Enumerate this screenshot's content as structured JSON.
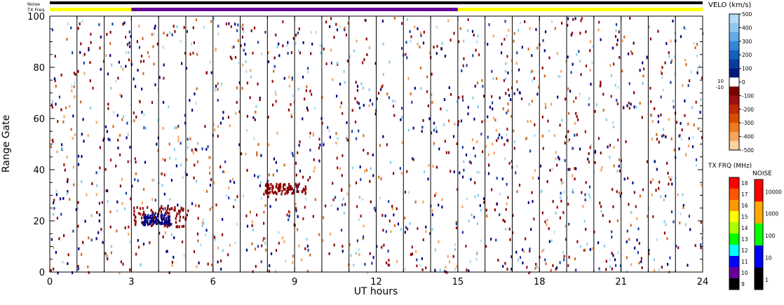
{
  "header": {
    "noise_label": "Noise",
    "txfreq_label": "TX Freq"
  },
  "chart_data": {
    "type": "scatter",
    "xlabel": "UT hours",
    "ylabel": "Range Gate",
    "xlim": [
      0,
      24
    ],
    "ylim": [
      0,
      100
    ],
    "x_ticks": [
      "0",
      "3",
      "6",
      "9",
      "12",
      "15",
      "18",
      "21",
      "24"
    ],
    "y_ticks": [
      "0",
      "20",
      "40",
      "60",
      "80",
      "100"
    ],
    "scan_boundaries_ut": [
      1,
      2,
      3,
      4,
      5,
      6,
      7,
      8,
      9,
      10,
      11,
      12,
      13,
      14,
      15,
      16,
      17,
      18,
      19,
      20,
      21,
      22,
      23
    ],
    "noise_bar": {
      "segments": [
        {
          "from": 0,
          "to": 24,
          "color": "#000000"
        }
      ]
    },
    "txfreq_bar": {
      "segments": [
        {
          "from": 0,
          "to": 3,
          "color": "#ffff00"
        },
        {
          "from": 3,
          "to": 15,
          "color": "#660099"
        },
        {
          "from": 15,
          "to": 24,
          "color": "#ffff00"
        }
      ]
    },
    "echo_clusters": [
      {
        "ut_start": 3.05,
        "ut_end": 5.1,
        "gate_start": 18,
        "gate_end": 26,
        "color": "#8b0000"
      },
      {
        "ut_start": 3.4,
        "ut_end": 4.4,
        "gate_start": 19,
        "gate_end": 23,
        "color": "#000080"
      },
      {
        "ut_start": 7.9,
        "ut_end": 9.4,
        "gate_start": 31,
        "gate_end": 35,
        "color": "#8b0000"
      }
    ],
    "velocity_colorbar": {
      "title": "VELO (km/s)",
      "tick_labels": [
        "500",
        "400",
        "300",
        "200",
        "100",
        "0",
        "-100",
        "-200",
        "-300",
        "-400",
        "-500"
      ],
      "inner_labels": [
        "10",
        "-10"
      ],
      "colors": [
        "#b4dcf5",
        "#8fc6ee",
        "#63a9e3",
        "#3587d6",
        "#1660bd",
        "#0b3c9f",
        "#001a7a",
        "#ffffff",
        "#7a0000",
        "#9e1010",
        "#c02a00",
        "#d94f00",
        "#ef7b1c",
        "#f7a55c",
        "#fcd0a0"
      ]
    },
    "txfreq_colorbar": {
      "title": "TX FRQ (MHz)",
      "tick_labels": [
        "18",
        "17",
        "16",
        "15",
        "14",
        "13",
        "12",
        "11",
        "10",
        "9"
      ],
      "colors": [
        "#ff0000",
        "#ff5500",
        "#ff9900",
        "#ffff00",
        "#aaff00",
        "#00ff00",
        "#00ffff",
        "#0000ff",
        "#660099",
        "#000000"
      ]
    },
    "noise_colorbar": {
      "title": "NOISE",
      "tick_labels": [
        "10000",
        "1000",
        "100",
        "10",
        "1"
      ],
      "colors": [
        "#ff0000",
        "#ffaa00",
        "#00ff00",
        "#0000ff",
        "#000000"
      ]
    }
  }
}
